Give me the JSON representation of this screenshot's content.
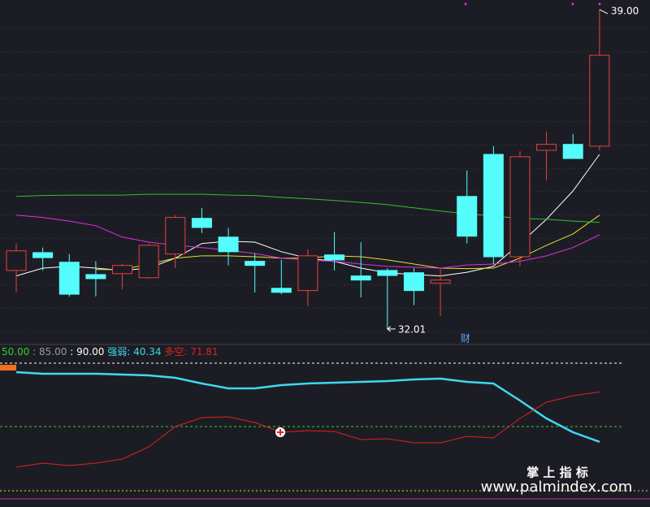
{
  "chart_data": [
    {
      "type": "candlestick",
      "ylim": [
        31.74,
        39.21
      ],
      "open": [
        33.29,
        33.68,
        33.47,
        33.2,
        33.22,
        33.13,
        33.65,
        34.43,
        34.02,
        33.49,
        32.9,
        32.85,
        33.63,
        33.17,
        33.29,
        33.24,
        33.01,
        34.91,
        35.83,
        33.59,
        35.92,
        36.05,
        36.01
      ],
      "close": [
        33.72,
        33.57,
        32.77,
        33.11,
        33.4,
        33.84,
        34.45,
        34.23,
        33.7,
        33.4,
        32.81,
        33.61,
        33.52,
        33.08,
        33.18,
        32.85,
        33.08,
        34.04,
        33.59,
        35.78,
        36.05,
        35.74,
        38.0
      ],
      "high": [
        33.88,
        33.79,
        33.65,
        33.49,
        33.43,
        33.88,
        34.5,
        34.66,
        34.22,
        33.66,
        33.52,
        33.75,
        34.13,
        33.91,
        33.34,
        33.34,
        33.34,
        35.48,
        36.01,
        35.9,
        36.33,
        36.28,
        39.0
      ],
      "low": [
        32.81,
        33.29,
        32.72,
        32.72,
        32.88,
        33.11,
        33.34,
        34.11,
        33.4,
        32.81,
        32.77,
        32.51,
        33.29,
        32.7,
        32.01,
        32.53,
        32.29,
        33.88,
        33.43,
        33.38,
        35.26,
        35.73,
        35.92
      ],
      "up_color": "#e8413c",
      "down_color": "#54fcfc",
      "lines": [
        {
          "color": "#ffffff",
          "values": [
            33.17,
            33.34,
            33.38,
            33.34,
            33.29,
            33.34,
            33.56,
            33.88,
            33.93,
            33.91,
            33.7,
            33.56,
            33.49,
            33.34,
            33.24,
            33.2,
            33.17,
            33.25,
            33.38,
            33.88,
            34.41,
            35.03,
            35.83
          ]
        },
        {
          "color": "#e8e030",
          "values": [
            null,
            null,
            null,
            33.31,
            33.31,
            33.43,
            33.56,
            33.61,
            33.61,
            33.59,
            33.56,
            33.56,
            33.61,
            33.59,
            33.52,
            33.43,
            33.34,
            33.33,
            33.34,
            33.56,
            33.84,
            34.09,
            34.5
          ]
        },
        {
          "color": "#e030e0",
          "values": [
            34.5,
            34.45,
            34.37,
            34.27,
            34.02,
            33.91,
            33.84,
            33.79,
            33.73,
            33.66,
            33.56,
            33.52,
            33.49,
            33.43,
            33.38,
            33.36,
            33.34,
            33.41,
            33.43,
            33.49,
            33.61,
            33.79,
            34.07
          ]
        },
        {
          "color": "#30c030",
          "values": [
            34.91,
            34.93,
            34.94,
            34.94,
            34.94,
            34.96,
            34.96,
            34.96,
            34.94,
            34.93,
            34.89,
            34.86,
            34.82,
            34.78,
            34.73,
            34.66,
            34.59,
            34.53,
            34.48,
            34.43,
            34.41,
            34.37,
            34.34
          ]
        }
      ],
      "high_label": {
        "value": 39.0,
        "label": "39.00"
      },
      "low_label": {
        "value": 32.01,
        "label": "32.01"
      },
      "marker": "财"
    },
    {
      "type": "line",
      "ylim": [
        0,
        93.59
      ],
      "levels": [
        {
          "value": 50,
          "label": "50.00",
          "color": "#30d030"
        },
        {
          "value": 85,
          "label": "85.00",
          "color": "#9a9a9a"
        },
        {
          "value": 90,
          "label": "90.00",
          "color": "#ffffff"
        }
      ],
      "series": [
        {
          "name": "强弱",
          "color": "#40d8f0",
          "value_label": "40.34",
          "values": [
            84.36,
            83.33,
            83.33,
            83.33,
            82.82,
            82.31,
            80.77,
            77.18,
            74.1,
            74.1,
            76.15,
            77.18,
            77.69,
            78.21,
            78.72,
            79.74,
            80.26,
            78.21,
            77.18,
            66.41,
            55.13,
            46.41,
            40.34
          ]
        },
        {
          "name": "多空",
          "color": "#e02020",
          "value_label": "71.81",
          "values": [
            24.36,
            26.92,
            25.38,
            26.92,
            29.49,
            37.18,
            50.0,
            55.64,
            56.15,
            52.56,
            46.41,
            47.44,
            46.92,
            41.79,
            42.31,
            39.74,
            39.74,
            43.85,
            42.82,
            55.13,
            65.38,
            69.49,
            71.81
          ]
        }
      ]
    }
  ],
  "watermark": {
    "title": "掌 上 指 标",
    "url": "www.palmindex.com"
  }
}
